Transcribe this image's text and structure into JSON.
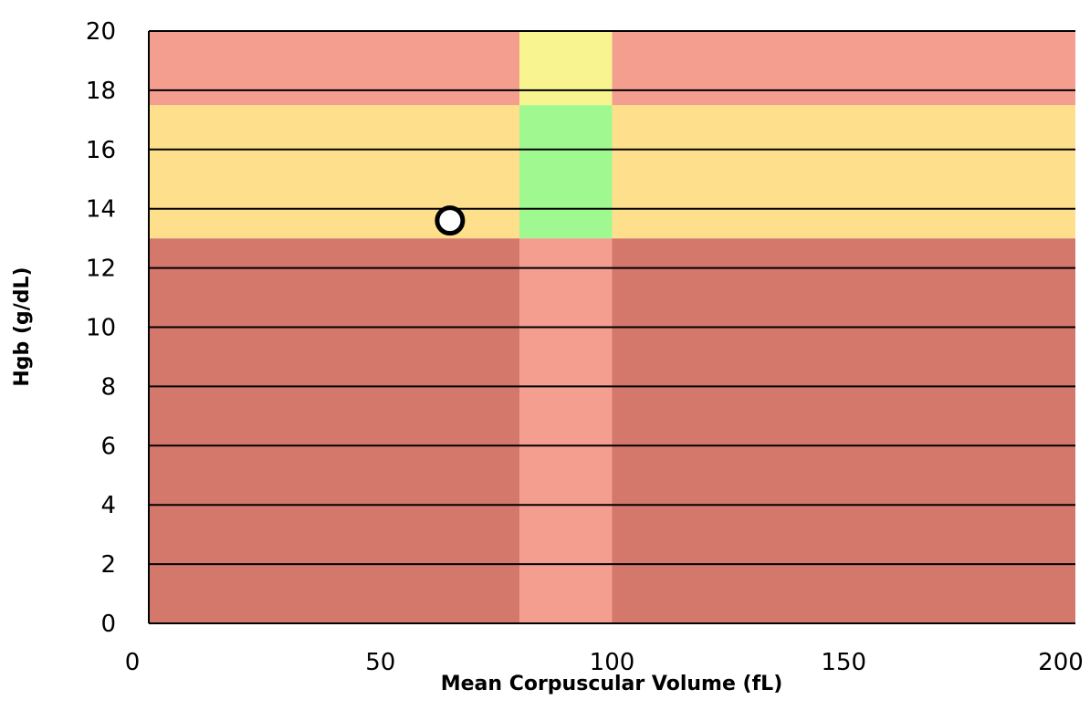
{
  "chart_data": {
    "type": "scatter",
    "xlabel": "Mean Corpuscular Volume (fL)",
    "ylabel": "Hgb (g/dL)",
    "xlim": [
      0,
      200
    ],
    "ylim": [
      0,
      20
    ],
    "x_ticks": [
      0,
      50,
      100,
      150,
      200
    ],
    "y_ticks": [
      0,
      2,
      4,
      6,
      8,
      10,
      12,
      14,
      16,
      18,
      20
    ],
    "grid": "horizontal",
    "legend": "none",
    "regions": [
      {
        "x": [
          0,
          80
        ],
        "y": [
          0,
          13
        ],
        "color": "#d4786c"
      },
      {
        "x": [
          80,
          100
        ],
        "y": [
          0,
          13
        ],
        "color": "#f49e90"
      },
      {
        "x": [
          100,
          200
        ],
        "y": [
          0,
          13
        ],
        "color": "#d4786c"
      },
      {
        "x": [
          0,
          80
        ],
        "y": [
          13,
          17.5
        ],
        "color": "#fedf8c"
      },
      {
        "x": [
          80,
          100
        ],
        "y": [
          13,
          17.5
        ],
        "color": "#a0f890"
      },
      {
        "x": [
          100,
          200
        ],
        "y": [
          13,
          17.5
        ],
        "color": "#fedf8c"
      },
      {
        "x": [
          0,
          80
        ],
        "y": [
          17.5,
          20
        ],
        "color": "#f49e90"
      },
      {
        "x": [
          80,
          100
        ],
        "y": [
          17.5,
          20
        ],
        "color": "#f8f490"
      },
      {
        "x": [
          100,
          200
        ],
        "y": [
          17.5,
          20
        ],
        "color": "#f49e90"
      }
    ],
    "points": [
      {
        "x": 65,
        "y": 13.6
      }
    ],
    "point_style": {
      "fill": "#ffffff",
      "stroke": "#000000"
    },
    "gridline_color": "#000000"
  }
}
